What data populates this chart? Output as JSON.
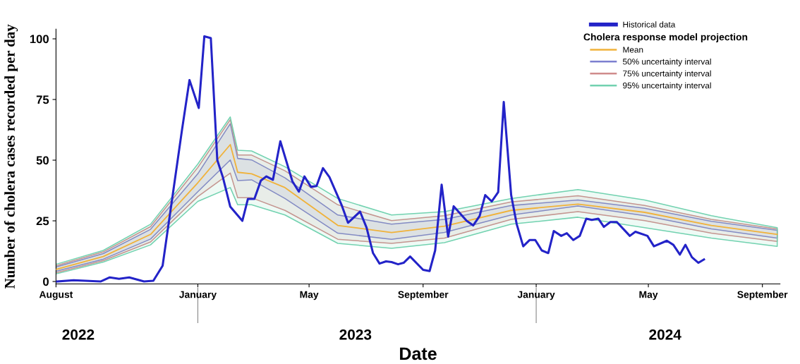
{
  "chart_data": {
    "type": "line",
    "xlabel": "Date",
    "ylabel": "Number of cholera cases recorded per day",
    "legend_title": "Cholera response model projection",
    "legend": "top right",
    "grid": false,
    "xlim": [
      "2022-08-01",
      "2024-09-20"
    ],
    "xticks": [
      {
        "value": "2022-08-01",
        "label": "August"
      },
      {
        "value": "2023-01-01",
        "label": "January"
      },
      {
        "value": "2023-05-01",
        "label": "May"
      },
      {
        "value": "2023-09-01",
        "label": "September"
      },
      {
        "value": "2024-01-01",
        "label": "January"
      },
      {
        "value": "2024-05-01",
        "label": "May"
      },
      {
        "value": "2024-09-01",
        "label": "September"
      }
    ],
    "x2lim": [
      "2022-08-01",
      "2024-09-20"
    ],
    "x2ticks": [
      {
        "value": "2022-08-25",
        "label": "2022"
      },
      {
        "value": "2023-01-01",
        "label": null
      },
      {
        "value": "2023-06-20",
        "label": "2023"
      },
      {
        "value": "2024-01-01",
        "label": null
      },
      {
        "value": "2024-05-19",
        "label": "2024"
      }
    ],
    "ylim": [
      -1,
      104
    ],
    "yticks": [
      0,
      25,
      50,
      75,
      100
    ],
    "series": [
      {
        "name": "Historical data",
        "color": "#2323c8",
        "x": [
          "2022-08-02",
          "2022-08-20",
          "2022-09-18",
          "2022-09-28",
          "2022-10-08",
          "2022-10-19",
          "2022-11-04",
          "2022-11-14",
          "2022-11-24",
          "2022-12-15",
          "2022-12-23",
          "2023-01-02",
          "2023-01-08",
          "2023-01-15",
          "2023-01-22",
          "2023-01-28",
          "2023-02-05",
          "2023-02-18",
          "2023-02-24",
          "2023-03-03",
          "2023-03-10",
          "2023-03-16",
          "2023-03-23",
          "2023-03-31",
          "2023-04-13",
          "2023-04-20",
          "2023-04-26",
          "2023-05-03",
          "2023-05-09",
          "2023-05-16",
          "2023-05-23",
          "2023-06-05",
          "2023-06-12",
          "2023-06-25",
          "2023-07-02",
          "2023-07-09",
          "2023-07-16",
          "2023-07-23",
          "2023-07-29",
          "2023-08-05",
          "2023-08-11",
          "2023-08-18",
          "2023-09-01",
          "2023-09-08",
          "2023-09-14",
          "2023-09-21",
          "2023-09-28",
          "2023-10-04",
          "2023-10-18",
          "2023-10-25",
          "2023-11-01",
          "2023-11-07",
          "2023-11-14",
          "2023-11-21",
          "2023-11-27",
          "2023-12-05",
          "2023-12-11",
          "2023-12-18",
          "2023-12-25",
          "2023-12-31",
          "2024-01-07",
          "2024-01-14",
          "2024-01-20",
          "2024-01-28",
          "2024-02-03",
          "2024-02-10",
          "2024-02-17",
          "2024-02-24",
          "2024-03-01",
          "2024-03-08",
          "2024-03-14",
          "2024-03-21",
          "2024-03-28",
          "2024-04-11",
          "2024-04-17",
          "2024-04-30",
          "2024-05-07",
          "2024-05-21",
          "2024-05-28",
          "2024-06-04",
          "2024-06-10",
          "2024-06-17",
          "2024-06-24",
          "2024-06-30"
        ],
        "values": [
          0,
          0.5,
          0,
          1.7,
          1.1,
          1.7,
          0,
          0.3,
          6.5,
          62.7,
          83,
          71.5,
          101,
          100.3,
          50,
          43,
          30.8,
          25,
          34,
          34,
          41.6,
          43.3,
          41.9,
          57.8,
          41.3,
          37,
          43.3,
          39,
          39.3,
          46.7,
          43,
          31.6,
          24.2,
          28.8,
          22.2,
          11.7,
          7.4,
          8.3,
          8,
          7.1,
          7.7,
          10.3,
          4.8,
          4.3,
          12.8,
          39.9,
          18.5,
          31,
          25,
          23.1,
          27,
          35.6,
          33,
          36.8,
          74,
          35.6,
          23.6,
          14.5,
          17.1,
          17.1,
          12.8,
          11.7,
          20.8,
          18.8,
          19.9,
          17.1,
          18.8,
          25.9,
          25.4,
          25.9,
          22.5,
          24.5,
          24.5,
          18.8,
          20.5,
          18.8,
          14.5,
          16.8,
          15.1,
          11.1,
          15.1,
          10,
          7.7,
          9.1
        ]
      },
      {
        "name": "Mean",
        "color": "#f0b23a",
        "x": [
          "2022-08-01",
          "2022-09-21",
          "2022-11-11",
          "2023-01-01",
          "2023-02-05",
          "2023-02-13",
          "2023-02-28",
          "2023-04-05",
          "2023-06-01",
          "2023-07-29",
          "2023-09-24",
          "2023-12-05",
          "2024-02-15",
          "2024-04-27",
          "2024-07-08",
          "2024-09-17"
        ],
        "values": [
          5,
          10.3,
          19.4,
          40.7,
          56.4,
          45,
          44.4,
          38.7,
          23.1,
          20.2,
          22.8,
          29.3,
          31.9,
          28.5,
          23.1,
          19.4
        ]
      },
      {
        "name": "50% uncertainty interval",
        "color": "#7d80d0",
        "x": [
          "2022-08-01",
          "2022-09-21",
          "2022-11-11",
          "2023-01-01",
          "2023-02-05",
          "2023-02-13",
          "2023-02-28",
          "2023-04-05",
          "2023-06-01",
          "2023-07-29",
          "2023-09-24",
          "2023-12-05",
          "2024-02-15",
          "2024-04-27",
          "2024-07-08",
          "2024-09-17"
        ],
        "values": [
          null,
          null,
          null,
          null,
          null,
          null,
          null,
          null,
          null,
          null,
          null,
          null,
          null,
          null,
          null,
          null
        ],
        "lower": [
          4.2,
          9.2,
          17.5,
          37,
          50.1,
          41.6,
          41.9,
          34.2,
          19.9,
          17.4,
          20.2,
          27.4,
          31.1,
          27.1,
          21.7,
          17.9
        ],
        "upper": [
          6,
          11.5,
          21.5,
          44.4,
          65,
          50.7,
          50.1,
          42.7,
          27.4,
          23.6,
          25.6,
          31.3,
          33.6,
          30.2,
          24.8,
          21.1
        ]
      },
      {
        "name": "75% uncertainty interval",
        "color": "#d08c8c",
        "x": [
          "2022-08-01",
          "2022-09-21",
          "2022-11-11",
          "2023-01-01",
          "2023-02-05",
          "2023-02-13",
          "2023-02-28",
          "2023-04-05",
          "2023-06-01",
          "2023-07-29",
          "2023-09-24",
          "2023-12-05",
          "2024-02-15",
          "2024-04-27",
          "2024-07-08",
          "2024-09-17"
        ],
        "values": [
          null,
          null,
          null,
          null,
          null,
          null,
          null,
          null,
          null,
          null,
          null,
          null,
          null,
          null,
          null,
          null
        ],
        "lower": [
          3.6,
          8.6,
          16.3,
          35,
          44.7,
          34.5,
          34.5,
          29.3,
          17.4,
          15.7,
          17.9,
          25.6,
          28.8,
          25.1,
          19.9,
          16.5
        ],
        "upper": [
          6.5,
          12.2,
          22.6,
          47,
          66.7,
          52.1,
          52.1,
          45.6,
          31.6,
          25.1,
          27.1,
          32.8,
          35.3,
          31.3,
          25.6,
          21.7
        ]
      },
      {
        "name": "95% uncertainty interval",
        "color": "#72d2b0",
        "x": [
          "2022-08-01",
          "2022-09-21",
          "2022-11-11",
          "2023-01-01",
          "2023-02-05",
          "2023-02-13",
          "2023-02-28",
          "2023-04-05",
          "2023-06-01",
          "2023-07-29",
          "2023-09-24",
          "2023-12-05",
          "2024-02-15",
          "2024-04-27",
          "2024-07-08",
          "2024-09-17"
        ],
        "values": [
          null,
          null,
          null,
          null,
          null,
          null,
          null,
          null,
          null,
          null,
          null,
          null,
          null,
          null,
          null,
          null
        ],
        "lower": [
          3.1,
          8,
          15.1,
          33,
          38.7,
          31.6,
          31.6,
          27.4,
          15.7,
          13.7,
          16,
          23.6,
          26.5,
          22.2,
          17.9,
          14.5
        ],
        "upper": [
          7.1,
          12.8,
          23.6,
          48.4,
          67.8,
          54.1,
          53.8,
          47.3,
          34.2,
          27.4,
          28.8,
          34.2,
          37.9,
          33.6,
          27.1,
          22.2
        ]
      }
    ]
  }
}
